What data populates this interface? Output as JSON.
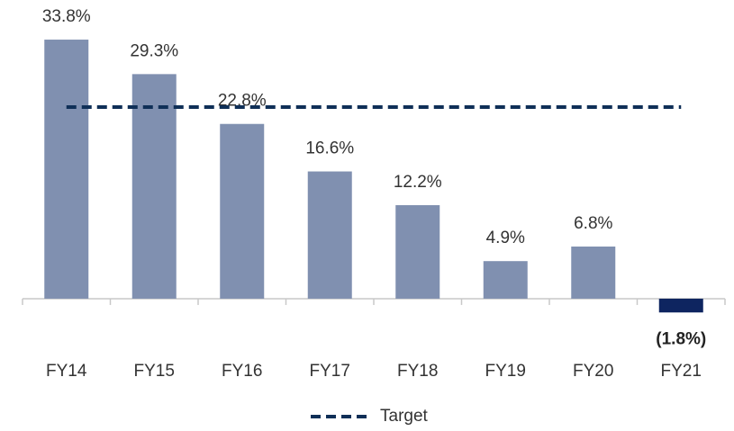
{
  "chart_data": {
    "type": "bar",
    "categories": [
      "FY14",
      "FY15",
      "FY16",
      "FY17",
      "FY18",
      "FY19",
      "FY20",
      "FY21"
    ],
    "values": [
      33.8,
      29.3,
      22.8,
      16.6,
      12.2,
      4.9,
      6.8,
      -1.8
    ],
    "value_labels": [
      "33.8%",
      "29.3%",
      "22.8%",
      "16.6%",
      "12.2%",
      "4.9%",
      "6.8%",
      "(1.8%)"
    ],
    "color": "#8090b0",
    "negative_color": "#0e2560",
    "target": {
      "name": "Target",
      "value": 25,
      "color": "#0f2f57"
    },
    "ylim": [
      -4,
      36
    ]
  }
}
